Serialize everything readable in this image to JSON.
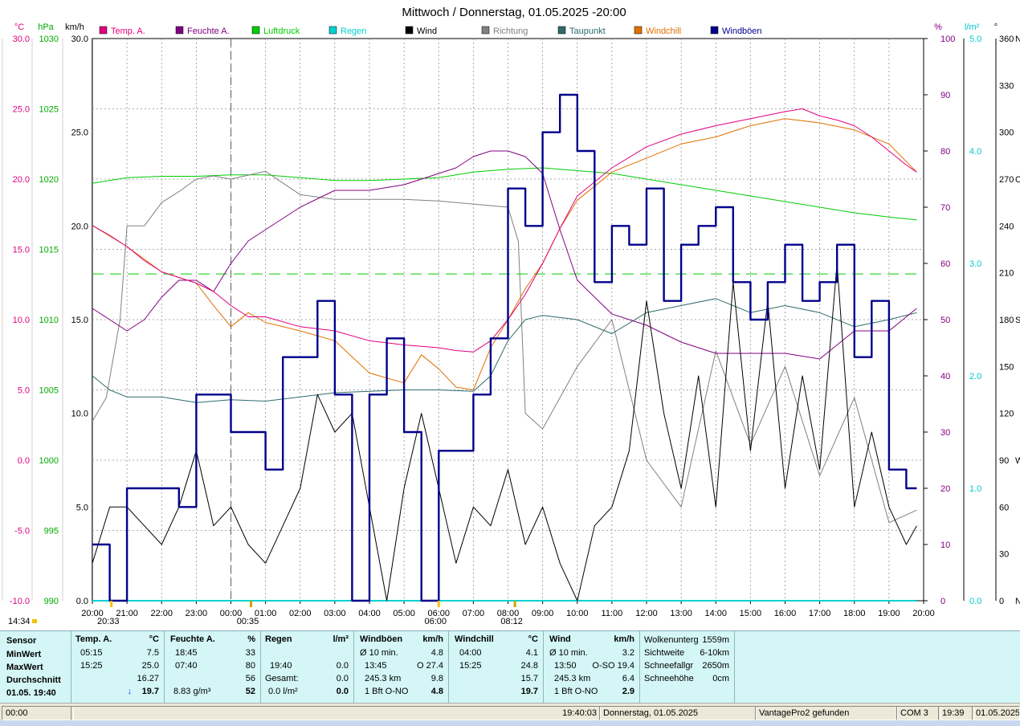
{
  "title": "Mittwoch / Donnerstag, 01.05.2025  -20:00",
  "legend": [
    {
      "label": "Temp. A.",
      "color": "#e0007f"
    },
    {
      "label": "Feuchte A.",
      "color": "#800080"
    },
    {
      "label": "Luftdruck",
      "color": "#00cc00"
    },
    {
      "label": "Regen",
      "color": "#00d0d0"
    },
    {
      "label": "Wind",
      "color": "#000000"
    },
    {
      "label": "Richtung",
      "color": "#808080"
    },
    {
      "label": "Taupunkt",
      "color": "#2e6b6b"
    },
    {
      "label": "Windchill",
      "color": "#e07000"
    },
    {
      "label": "Windböen",
      "color": "#00008b"
    }
  ],
  "axis_units": {
    "temp": "°C",
    "pressure": "hPa",
    "wind": "km/h",
    "humidity": "%",
    "rain": "l/m²",
    "direction": "°"
  },
  "axes": {
    "temp_ticks": [
      "30.0",
      "25.0",
      "20.0",
      "15.0",
      "10.0",
      "5.0",
      "0.0",
      "-5.0",
      "-10.0"
    ],
    "pressure_ticks": [
      "1030",
      "1025",
      "1020",
      "1015",
      "1010",
      "1005",
      "1000",
      "995",
      "990"
    ],
    "wind_ticks": [
      "30.0",
      "25.0",
      "20.0",
      "15.0",
      "10.0",
      "5.0",
      "0.0"
    ],
    "humidity_ticks": [
      "100",
      "90",
      "80",
      "70",
      "60",
      "50",
      "40",
      "30",
      "20",
      "10",
      "0"
    ],
    "rain_ticks": [
      "5.0",
      "4.0",
      "3.0",
      "2.0",
      "1.0",
      "0.0"
    ],
    "dir_ticks": [
      "360",
      "330",
      "300",
      "270",
      "240",
      "210",
      "180",
      "150",
      "120",
      "90",
      "60",
      "30",
      "0"
    ],
    "dir_suffix": [
      "N",
      "W",
      "S",
      "O",
      "N"
    ],
    "time_ticks": [
      "20:00",
      "21:00",
      "22:00",
      "23:00",
      "00:00",
      "01:00",
      "02:00",
      "03:00",
      "04:00",
      "05:00",
      "06:00",
      "07:00",
      "08:00",
      "09:00",
      "10:00",
      "11:00",
      "12:00",
      "13:00",
      "14:00",
      "15:00",
      "16:00",
      "17:00",
      "18:00",
      "19:00",
      "20:00"
    ]
  },
  "markers": {
    "sunset": "20:33",
    "moonset": "00:35",
    "sunrise": "06:00",
    "moonrise": "08:12",
    "left_time": "14:34"
  },
  "chart_data": {
    "type": "line",
    "title": "Mittwoch / Donnerstag, 01.05.2025  -20:00",
    "x_unit": "hours since 20:00",
    "series": [
      {
        "name": "Temp. A.",
        "axis": "°C",
        "color": "#e0007f",
        "x": [
          0,
          0.5,
          1,
          1.5,
          2,
          2.5,
          3,
          3.5,
          4,
          4.5,
          5,
          6,
          7,
          8,
          9,
          10,
          10.5,
          11,
          11.5,
          12,
          12.5,
          13,
          13.5,
          14,
          15,
          16,
          17,
          18,
          19,
          20,
          20.5,
          21,
          21.5,
          22,
          22.5,
          23,
          23.5,
          23.8
        ],
        "y": [
          16.7,
          16.0,
          15.2,
          14.2,
          13.4,
          13.0,
          12.6,
          12.0,
          11.0,
          10.2,
          10.2,
          9.5,
          9.2,
          8.5,
          8.2,
          8.0,
          7.8,
          7.7,
          8.5,
          10.0,
          11.8,
          14.0,
          16.5,
          18.8,
          20.8,
          22.3,
          23.2,
          23.8,
          24.3,
          24.8,
          25.0,
          24.5,
          24.2,
          23.8,
          23.0,
          22.0,
          21.0,
          20.5
        ]
      },
      {
        "name": "Feuchte A.",
        "axis": "%",
        "color": "#800080",
        "x": [
          0,
          0.5,
          1,
          1.5,
          2,
          2.5,
          3,
          3.5,
          4,
          4.5,
          5,
          6,
          7,
          8,
          9,
          10,
          10.5,
          11,
          11.5,
          12,
          12.5,
          13,
          13.5,
          14,
          15,
          16,
          17,
          18,
          19,
          20,
          21,
          22,
          23,
          23.8
        ],
        "y": [
          52,
          50,
          48,
          50,
          54,
          57,
          57,
          55,
          60,
          64,
          66,
          70,
          73,
          73,
          74,
          76,
          77,
          79,
          80,
          80,
          79,
          76,
          66,
          57,
          51,
          49,
          46,
          44,
          44,
          44,
          43,
          48,
          48,
          52
        ]
      },
      {
        "name": "Luftdruck",
        "axis": "hPa",
        "color": "#00cc00",
        "x": [
          0,
          1,
          2,
          3,
          4,
          5,
          6,
          7,
          8,
          9,
          10,
          11,
          12,
          13,
          14,
          15,
          16,
          17,
          18,
          19,
          20,
          21,
          22,
          23,
          23.8
        ],
        "y": [
          1019.7,
          1020.1,
          1020.2,
          1020.2,
          1020.3,
          1020.3,
          1020.1,
          1019.9,
          1019.9,
          1020.0,
          1020.1,
          1020.5,
          1020.7,
          1020.8,
          1020.6,
          1020.4,
          1020.0,
          1019.6,
          1019.2,
          1018.8,
          1018.4,
          1018.0,
          1017.6,
          1017.3,
          1017.1
        ]
      },
      {
        "name": "Regen",
        "axis": "l/m²",
        "color": "#00d0d0",
        "x": [
          0,
          23.8
        ],
        "y": [
          0,
          0
        ]
      },
      {
        "name": "Taupunkt",
        "axis": "°C",
        "color": "#2e6b6b",
        "x": [
          0,
          0.5,
          1,
          2,
          3,
          4,
          5,
          6,
          7,
          8,
          9,
          10,
          11,
          11.5,
          12,
          12.5,
          13,
          14,
          15,
          16,
          17,
          18,
          19,
          20,
          21,
          22,
          23,
          23.8
        ],
        "y": [
          6.0,
          5.0,
          4.5,
          4.5,
          4.1,
          4.3,
          4.2,
          4.5,
          4.8,
          4.9,
          5.0,
          5.0,
          4.9,
          6.0,
          8.5,
          10.0,
          10.3,
          10.0,
          9.0,
          10.5,
          11.0,
          11.5,
          10.5,
          11.0,
          10.5,
          9.5,
          10.0,
          10.5
        ]
      },
      {
        "name": "Windchill",
        "axis": "°C",
        "color": "#e07000",
        "x": [
          0,
          1,
          2,
          3,
          3.5,
          4,
          4.5,
          5,
          6,
          7,
          8,
          9,
          9.5,
          10,
          10.5,
          11,
          11.5,
          12,
          12.5,
          13,
          13.5,
          14,
          15,
          16,
          17,
          18,
          19,
          20,
          21,
          22,
          23,
          23.8
        ],
        "y": [
          16.7,
          15.2,
          13.4,
          12.6,
          11.0,
          9.5,
          10.5,
          9.8,
          9.2,
          8.5,
          6.2,
          5.5,
          7.5,
          6.5,
          5.2,
          5.0,
          8.0,
          10.0,
          12.2,
          14.0,
          16.5,
          18.5,
          20.5,
          21.5,
          22.5,
          23.0,
          23.8,
          24.3,
          24.0,
          23.5,
          22.5,
          20.5
        ]
      },
      {
        "name": "Wind",
        "axis": "km/h",
        "color": "#000000",
        "x": [
          0,
          0.5,
          1,
          1.5,
          2,
          2.5,
          3,
          3.5,
          4,
          4.5,
          5,
          5.5,
          6,
          6.5,
          7,
          7.5,
          8,
          8.5,
          9,
          9.5,
          10,
          10.5,
          11,
          11.5,
          12,
          12.5,
          13,
          13.5,
          14,
          14.5,
          15,
          15.5,
          16,
          16.5,
          17,
          17.5,
          18,
          18.5,
          19,
          19.5,
          20,
          20.5,
          21,
          21.5,
          22,
          22.5,
          23,
          23.5,
          23.8
        ],
        "y": [
          2,
          5,
          5,
          4,
          3,
          5,
          8,
          4,
          5,
          3,
          2,
          4,
          6,
          11,
          9,
          10,
          5,
          0,
          6,
          10,
          6,
          2,
          5,
          4,
          7,
          3,
          5,
          2,
          0,
          4,
          5,
          8,
          16,
          10,
          6,
          12,
          5,
          17,
          8,
          16,
          6,
          12,
          7,
          18,
          5,
          9,
          5,
          3,
          4
        ]
      },
      {
        "name": "Richtung",
        "axis": "°",
        "color": "#808080",
        "x": [
          0,
          0.4,
          0.8,
          1,
          1.5,
          2,
          2.5,
          3,
          3.5,
          4,
          5,
          6,
          7,
          8,
          9,
          10,
          11,
          12,
          12.3,
          12.5,
          13,
          14,
          15,
          16,
          17,
          18,
          19,
          20,
          21,
          22,
          23,
          23.5,
          23.8
        ],
        "y": [
          115,
          130,
          180,
          240,
          240,
          255,
          262,
          270,
          272,
          270,
          275,
          260,
          257,
          257,
          257,
          256,
          254,
          252,
          230,
          120,
          110,
          150,
          180,
          90,
          60,
          160,
          100,
          150,
          80,
          130,
          50,
          55,
          58
        ]
      },
      {
        "name": "Windböen",
        "axis": "km/h",
        "color": "#00008b",
        "x": [
          0,
          0.5,
          1,
          1.5,
          2,
          2.5,
          3,
          3.5,
          4,
          4.5,
          5,
          5.5,
          6,
          6.5,
          7,
          7.5,
          8,
          8.5,
          9,
          9.5,
          10,
          10.5,
          11,
          11.5,
          12,
          12.5,
          13,
          13.5,
          14,
          14.5,
          15,
          15.5,
          16,
          16.5,
          17,
          17.5,
          18,
          18.5,
          19,
          19.5,
          20,
          20.5,
          21,
          21.5,
          22,
          22.5,
          23,
          23.5,
          23.8
        ],
        "y": [
          3,
          0,
          6,
          6,
          6,
          5,
          11,
          11,
          9,
          9,
          7,
          13,
          13,
          16,
          11,
          0,
          11,
          14,
          9,
          0,
          8,
          8,
          11,
          14,
          22,
          20,
          25,
          27,
          24,
          17,
          20,
          19,
          22,
          16,
          19,
          20,
          21,
          17,
          15,
          17,
          19,
          16,
          17,
          19,
          13,
          16,
          7,
          6,
          6
        ]
      }
    ]
  },
  "stats": {
    "sensor": {
      "head": "Sensor",
      "rows": [
        "MinWert",
        "MaxWert",
        "Durchschnitt",
        "01.05. 19:40"
      ]
    },
    "temp": {
      "head": "Temp. A.",
      "unit": "°C",
      "rows": [
        [
          "05:15",
          "7.5"
        ],
        [
          "15:25",
          "25.0"
        ],
        [
          "",
          "16.27"
        ],
        [
          "",
          "19.7"
        ]
      ],
      "arrow": "↓"
    },
    "humidity": {
      "head": "Feuchte A.",
      "unit": "%",
      "rows": [
        [
          "18:45",
          "33"
        ],
        [
          "07:40",
          "80"
        ],
        [
          "",
          "56"
        ],
        [
          "8.83 g/m³",
          "52"
        ]
      ]
    },
    "rain": {
      "head": "Regen",
      "unit": "l/m²",
      "rows": [
        [
          "",
          ""
        ],
        [
          "19:40",
          "0.0"
        ],
        [
          "Gesamt:",
          "0.0"
        ],
        [
          "0.0 l/m²",
          "0.0"
        ]
      ]
    },
    "gusts": {
      "head": "Windböen",
      "unit": "km/h",
      "rows": [
        [
          "Ø 10 min.",
          "4.8"
        ],
        [
          "13:45",
          "O 27.4"
        ],
        [
          "245.3 km",
          "9.8"
        ],
        [
          "1 Bft O-NO",
          "4.8"
        ]
      ]
    },
    "windchill": {
      "head": "Windchill",
      "unit": "°C",
      "rows": [
        [
          "04:00",
          "4.1"
        ],
        [
          "15:25",
          "24.8"
        ],
        [
          "",
          "15.7"
        ],
        [
          "",
          "19.7"
        ]
      ]
    },
    "wind": {
      "head": "Wind",
      "unit": "km/h",
      "rows": [
        [
          "Ø 10 min.",
          "3.2"
        ],
        [
          "13:50",
          "O-SO 19.4"
        ],
        [
          "245.3 km",
          "6.4"
        ],
        [
          "1 Bft O-NO",
          "2.9"
        ]
      ]
    },
    "extra": {
      "rows": [
        [
          "Wolkenunterg",
          "1559m"
        ],
        [
          "Sichtweite",
          "6-10km"
        ],
        [
          "Schneefallgr",
          "2650m"
        ],
        [
          "Schneehöhe",
          "0cm"
        ]
      ]
    }
  },
  "status": {
    "left": "00:00",
    "time": "19:40:03",
    "date": "Donnerstag, 01.05.2025",
    "device": "VantagePro2 gefunden",
    "port": "COM 3",
    "clock": "19:39",
    "date2": "01.05.2025"
  }
}
